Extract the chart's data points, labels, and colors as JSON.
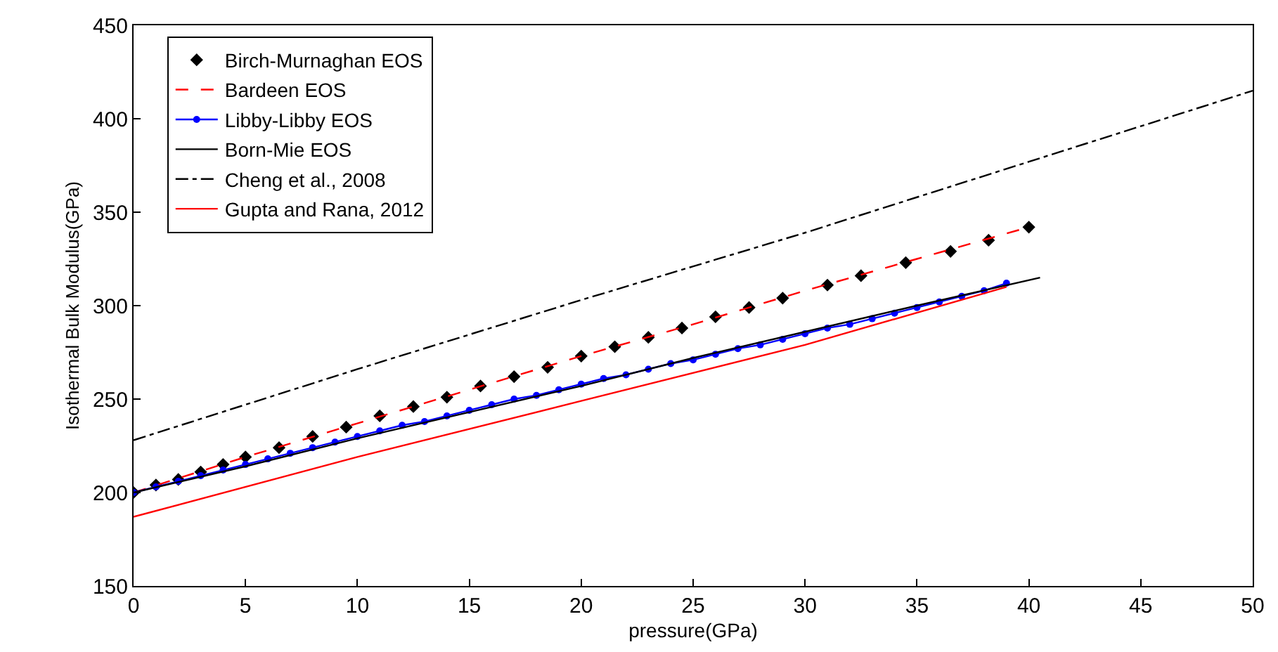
{
  "chart_data": {
    "type": "line",
    "xlabel": "pressure(GPa)",
    "ylabel": "Isothermal Bulk Modulus(GPa)",
    "xlim": [
      0,
      50
    ],
    "xticks": [
      0,
      5,
      10,
      15,
      20,
      25,
      30,
      35,
      40,
      45,
      50
    ],
    "ylim": [
      150,
      450
    ],
    "yticks": [
      150,
      200,
      250,
      300,
      350,
      400,
      450
    ],
    "legend": "top left",
    "series": [
      {
        "name": "Birch-Murnaghan EOS",
        "type": "scatter",
        "marker": "diamond",
        "color": "#000000",
        "x": [
          0,
          1,
          2,
          3,
          4,
          5,
          6.5,
          8,
          9.5,
          11,
          12.5,
          14,
          15.5,
          17,
          18.5,
          20,
          21.5,
          23,
          24.5,
          26,
          27.5,
          29,
          31,
          32.5,
          34.5,
          36.5,
          38.2,
          40
        ],
        "values": [
          200,
          204,
          207,
          211,
          215,
          219,
          224,
          230,
          235,
          241,
          246,
          251,
          257,
          262,
          267,
          273,
          278,
          283,
          288,
          294,
          299,
          304,
          311,
          316,
          323,
          329,
          335,
          342
        ]
      },
      {
        "name": "Bardeen EOS",
        "line_style": "dashed",
        "color": "#ff0000",
        "x": [
          0,
          5,
          10,
          15,
          20,
          25,
          30,
          35,
          40
        ],
        "values": [
          200,
          219,
          237,
          255,
          273,
          290,
          308,
          325,
          342
        ]
      },
      {
        "name": "Libby-Libby EOS",
        "marker": "circle",
        "color": "#0000ff",
        "x": [
          0,
          1,
          2,
          3,
          4,
          5,
          6,
          7,
          8,
          9,
          10,
          11,
          12,
          13,
          14,
          15,
          16,
          17,
          18,
          19,
          20,
          21,
          22,
          23,
          24,
          25,
          26,
          27,
          28,
          29,
          30,
          31,
          32,
          33,
          34,
          35,
          36,
          37,
          38,
          39
        ],
        "values": [
          200,
          203,
          206,
          209,
          212,
          215,
          218,
          221,
          224,
          227,
          230,
          233,
          236,
          238,
          241,
          244,
          247,
          250,
          252,
          255,
          258,
          261,
          263,
          266,
          269,
          271,
          274,
          277,
          279,
          282,
          285,
          288,
          290,
          293,
          296,
          299,
          302,
          305,
          308,
          312
        ]
      },
      {
        "name": "Born-Mie EOS",
        "line_style": "solid",
        "color": "#000000",
        "x": [
          0,
          5,
          10,
          15,
          20,
          25,
          30,
          35,
          40.5
        ],
        "values": [
          200,
          214,
          229,
          243,
          257,
          272,
          286,
          300,
          315
        ]
      },
      {
        "name": "Cheng et al., 2008",
        "line_style": "dashdot",
        "color": "#000000",
        "x": [
          0,
          10,
          20,
          25,
          30,
          40,
          50
        ],
        "values": [
          228,
          266,
          303,
          321,
          339,
          377,
          415
        ]
      },
      {
        "name": "Gupta and Rana, 2012",
        "line_style": "solid",
        "color": "#ff0000",
        "x": [
          0,
          10,
          20,
          30,
          39
        ],
        "values": [
          187,
          219,
          249,
          279,
          310
        ]
      }
    ]
  }
}
